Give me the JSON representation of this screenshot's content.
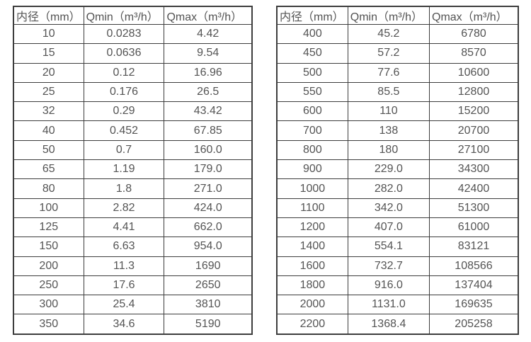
{
  "colors": {
    "border": "#3d3d3d",
    "text": "#545454",
    "background": "#ffffff"
  },
  "tables": [
    {
      "name": "flow-table-small-diameters",
      "columns": [
        "内径（mm）",
        "Qmin（m³/h）",
        "Qmax（m³/h）"
      ],
      "rows": [
        [
          "10",
          "0.0283",
          "4.42"
        ],
        [
          "15",
          "0.0636",
          "9.54"
        ],
        [
          "20",
          "0.12",
          "16.96"
        ],
        [
          "25",
          "0.176",
          "26.5"
        ],
        [
          "32",
          "0.29",
          "43.42"
        ],
        [
          "40",
          "0.452",
          "67.85"
        ],
        [
          "50",
          "0.7",
          "160.0"
        ],
        [
          "65",
          "1.19",
          "179.0"
        ],
        [
          "80",
          "1.8",
          "271.0"
        ],
        [
          "100",
          "2.82",
          "424.0"
        ],
        [
          "125",
          "4.41",
          "662.0"
        ],
        [
          "150",
          "6.63",
          "954.0"
        ],
        [
          "200",
          "11.3",
          "1690"
        ],
        [
          "250",
          "17.6",
          "2650"
        ],
        [
          "300",
          "25.4",
          "3810"
        ],
        [
          "350",
          "34.6",
          "5190"
        ]
      ]
    },
    {
      "name": "flow-table-large-diameters",
      "columns": [
        "内径（mm）",
        "Qmin（m³/h）",
        "Qmax（m³/h）"
      ],
      "rows": [
        [
          "400",
          "45.2",
          "6780"
        ],
        [
          "450",
          "57.2",
          "8570"
        ],
        [
          "500",
          "77.6",
          "10600"
        ],
        [
          "550",
          "85.5",
          "12800"
        ],
        [
          "600",
          "110",
          "15200"
        ],
        [
          "700",
          "138",
          "20700"
        ],
        [
          "800",
          "180",
          "27100"
        ],
        [
          "900",
          "229.0",
          "34300"
        ],
        [
          "1000",
          "282.0",
          "42400"
        ],
        [
          "1100",
          "342.0",
          "51300"
        ],
        [
          "1200",
          "407.0",
          "61000"
        ],
        [
          "1400",
          "554.1",
          "83121"
        ],
        [
          "1600",
          "732.7",
          "108566"
        ],
        [
          "1800",
          "916.0",
          "137404"
        ],
        [
          "2000",
          "1131.0",
          "169635"
        ],
        [
          "2200",
          "1368.4",
          "205258"
        ]
      ]
    }
  ]
}
